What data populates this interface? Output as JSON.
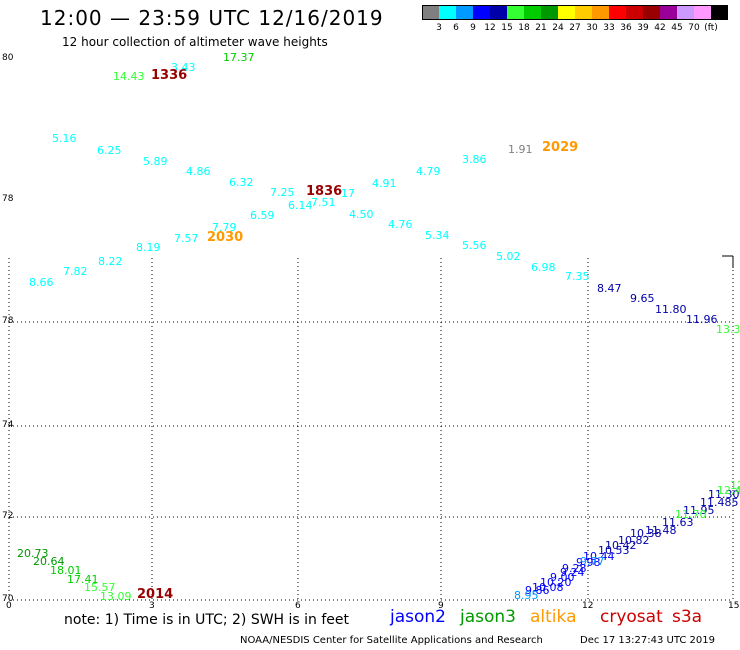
{
  "header": {
    "title": "12:00 — 23:59 UTC 12/16/2019",
    "subtitle": "12 hour collection of altimeter wave heights"
  },
  "colorbar": {
    "unit": "(ft)",
    "colors": [
      "#7f7f7f",
      "#00ffff",
      "#0099ff",
      "#0000ff",
      "#0000aa",
      "#33ff33",
      "#00cc00",
      "#009900",
      "#ffff00",
      "#ffcc00",
      "#ff9900",
      "#ff0000",
      "#cc0000",
      "#990000",
      "#990099",
      "#cc99ff",
      "#ff99ff",
      "#000000"
    ],
    "labels": [
      "3",
      "6",
      "9",
      "12",
      "15",
      "18",
      "21",
      "24",
      "27",
      "30",
      "33",
      "36",
      "39",
      "42",
      "45",
      "70"
    ]
  },
  "axes": {
    "lat_labels": [
      "80",
      "78",
      "76",
      "74",
      "72",
      "70"
    ],
    "lon_labels": [
      "0",
      "3",
      "6",
      "9",
      "12",
      "15"
    ]
  },
  "observations": [
    {
      "text": "14.43",
      "color": "#33ff33"
    },
    {
      "text": "3.43",
      "color": "#00ffff"
    },
    {
      "text": "17.37",
      "color": "#00cc00"
    },
    {
      "text": "1336",
      "color": "#990000",
      "big": true
    },
    {
      "text": "5.16",
      "color": "#00ffff"
    },
    {
      "text": "6.25",
      "color": "#00ffff"
    },
    {
      "text": "5.89",
      "color": "#00ffff"
    },
    {
      "text": "4.86",
      "color": "#00ffff"
    },
    {
      "text": "6.32",
      "color": "#00ffff"
    },
    {
      "text": "7.25",
      "color": "#00ffff"
    },
    {
      "text": "1836",
      "color": "#990000",
      "big": true
    },
    {
      "text": "17",
      "color": "#00ffff"
    },
    {
      "text": "6.14",
      "color": "#00ffff"
    },
    {
      "text": "7.51",
      "color": "#00ffff"
    },
    {
      "text": "4.91",
      "color": "#00ffff"
    },
    {
      "text": "4.79",
      "color": "#00ffff"
    },
    {
      "text": "3.86",
      "color": "#00ffff"
    },
    {
      "text": "1.91",
      "color": "#7f7f7f"
    },
    {
      "text": "2029",
      "color": "#ff9900",
      "big": true
    },
    {
      "text": "6.59",
      "color": "#00ffff"
    },
    {
      "text": "4.50",
      "color": "#00ffff"
    },
    {
      "text": "4.76",
      "color": "#00ffff"
    },
    {
      "text": "7.79",
      "color": "#00ffff"
    },
    {
      "text": "2030",
      "color": "#ff9900",
      "big": true
    },
    {
      "text": "7.57",
      "color": "#00ffff"
    },
    {
      "text": "8.19",
      "color": "#00ffff"
    },
    {
      "text": "5.34",
      "color": "#00ffff"
    },
    {
      "text": "5.56",
      "color": "#00ffff"
    },
    {
      "text": "8.22",
      "color": "#00ffff"
    },
    {
      "text": "7.82",
      "color": "#00ffff"
    },
    {
      "text": "8.66",
      "color": "#00ffff"
    },
    {
      "text": "5.02",
      "color": "#00ffff"
    },
    {
      "text": "6.98",
      "color": "#00ffff"
    },
    {
      "text": "7.35",
      "color": "#00ffff"
    },
    {
      "text": "8.47",
      "color": "#0000aa"
    },
    {
      "text": "9.65",
      "color": "#0000aa"
    },
    {
      "text": "11.80",
      "color": "#0000aa"
    },
    {
      "text": "11.96",
      "color": "#0000aa"
    },
    {
      "text": "13.3",
      "color": "#33ff33"
    },
    {
      "text": "20.73",
      "color": "#009900"
    },
    {
      "text": "20.64",
      "color": "#009900"
    },
    {
      "text": "18.01",
      "color": "#00cc00"
    },
    {
      "text": "17.41",
      "color": "#00cc00"
    },
    {
      "text": "15.57",
      "color": "#33ff33"
    },
    {
      "text": "13.09",
      "color": "#33ff33"
    },
    {
      "text": "2014",
      "color": "#990000",
      "big": true
    },
    {
      "text": "12",
      "color": "#33ff33"
    },
    {
      "text": "11.30",
      "color": "#0000aa"
    },
    {
      "text": "12.46",
      "color": "#33ff33"
    },
    {
      "text": "11.485",
      "color": "#0000aa"
    },
    {
      "text": "11.95",
      "color": "#0000aa"
    },
    {
      "text": "11.70",
      "color": "#33ff33"
    },
    {
      "text": "11.63",
      "color": "#0000aa"
    },
    {
      "text": "11.48",
      "color": "#0000aa"
    },
    {
      "text": "10.38",
      "color": "#0000aa"
    },
    {
      "text": "10.82",
      "color": "#0000aa"
    },
    {
      "text": "10.42",
      "color": "#0000aa"
    },
    {
      "text": "10.53",
      "color": "#0000aa"
    },
    {
      "text": "10.44",
      "color": "#0000ff"
    },
    {
      "text": "9.98",
      "color": "#0000ff"
    },
    {
      "text": "9.77",
      "color": "#0099ff"
    },
    {
      "text": "9.28",
      "color": "#0000ff"
    },
    {
      "text": "9.24",
      "color": "#0000ff"
    },
    {
      "text": "9.00",
      "color": "#0000ff"
    },
    {
      "text": "10.20",
      "color": "#0000ff"
    },
    {
      "text": "10.08",
      "color": "#0000ff"
    },
    {
      "text": "9.86",
      "color": "#0000ff"
    },
    {
      "text": "8.95",
      "color": "#0099ff"
    }
  ],
  "notes": {
    "text": "note:  1) Time is in UTC;  2) SWH is in feet"
  },
  "legend": [
    {
      "label": "jason2",
      "color": "#0000ff"
    },
    {
      "label": "jason3",
      "color": "#009900"
    },
    {
      "label": "altika",
      "color": "#ff9900"
    },
    {
      "label": "cryosat",
      "color": "#cc0000"
    },
    {
      "label": "s3a",
      "color": "#cc0000"
    }
  ],
  "footer": {
    "credit": "NOAA/NESDIS Center for Satellite Applications and Research",
    "timestamp": "Dec 17 13:27:43 UTC 2019"
  }
}
